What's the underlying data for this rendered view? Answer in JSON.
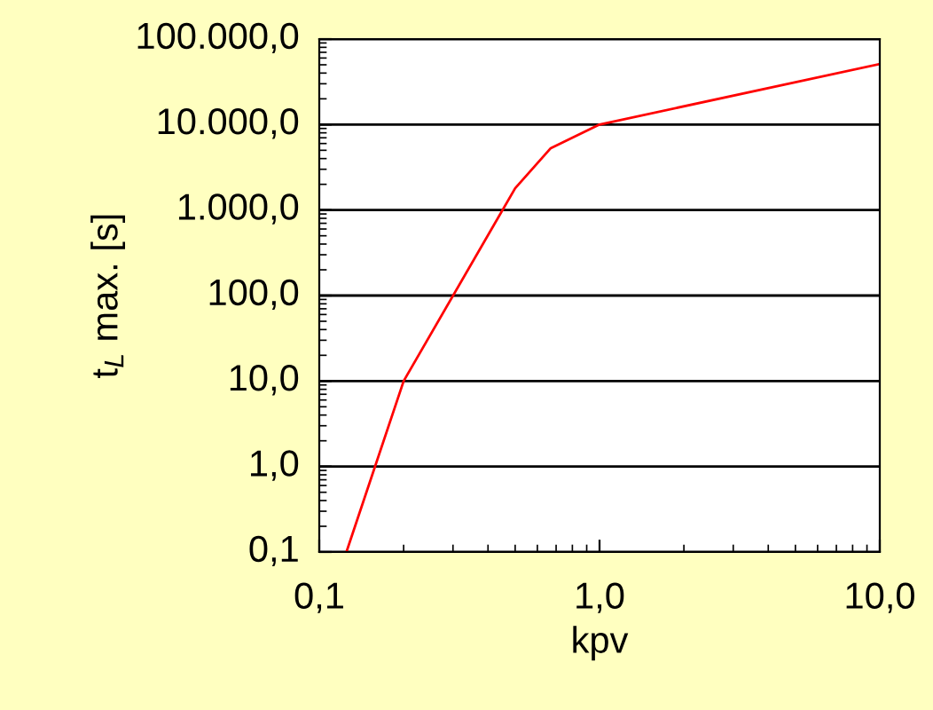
{
  "chart_data": {
    "type": "line",
    "xlabel": "kpv",
    "ylabel": "t$_{L}$ max. [s]",
    "log": "xy",
    "grid": "y",
    "x": [
      0.125,
      0.2,
      0.5,
      0.67,
      1.0,
      10.0
    ],
    "series": [
      {
        "color": "#ff0000",
        "values": [
          0.1,
          10,
          1800,
          5300,
          10000,
          51000
        ]
      }
    ],
    "xlim": [
      0.1,
      10
    ],
    "ylim": [
      0.1,
      100000
    ],
    "xticks": [
      {
        "value": 0.1,
        "label": "0,1"
      },
      {
        "value": 1,
        "label": "1,0"
      },
      {
        "value": 10,
        "label": "10,0"
      }
    ],
    "yticks": [
      {
        "value": 0.1,
        "label": "0,1"
      },
      {
        "value": 1,
        "label": "1,0"
      },
      {
        "value": 10,
        "label": "10,0"
      },
      {
        "value": 100,
        "label": "100,0"
      },
      {
        "value": 1000,
        "label": "1.000,0"
      },
      {
        "value": 10000,
        "label": "10.000,0"
      },
      {
        "value": 100000,
        "label": "100.000,0"
      }
    ]
  }
}
